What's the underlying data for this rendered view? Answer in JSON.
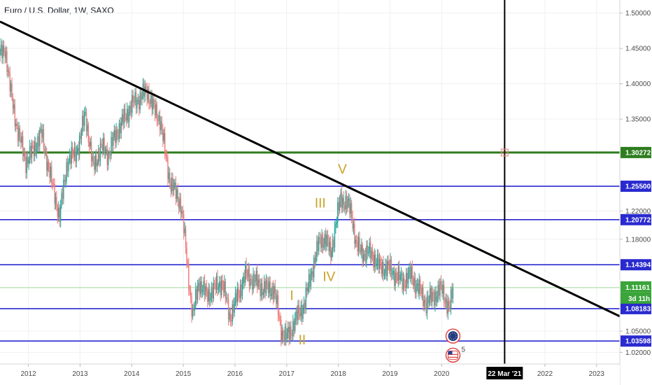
{
  "header": {
    "title": "Euro / U.S. Dollar, 1W, SAXO"
  },
  "colors": {
    "up": "#26a69a",
    "down": "#ef7a7a",
    "level": "#2a2ad0",
    "resistance_green": "#2e7d1e",
    "trendline": "#000000",
    "current_price": "#3aa53a",
    "grid": "#f0f0f0"
  },
  "chart_data": {
    "type": "candlestick",
    "symbol": "Euro / U.S. Dollar",
    "timeframe": "1W",
    "source": "SAXO",
    "x_range": [
      2011.45,
      2023.45
    ],
    "y_range": [
      1.0035,
      1.5185
    ],
    "x_ticks": [
      {
        "value": 2012,
        "label": "2012"
      },
      {
        "value": 2013,
        "label": "2013"
      },
      {
        "value": 2014,
        "label": "2014"
      },
      {
        "value": 2015,
        "label": "2015"
      },
      {
        "value": 2016,
        "label": "2016"
      },
      {
        "value": 2017,
        "label": "2017"
      },
      {
        "value": 2018,
        "label": "2018"
      },
      {
        "value": 2019,
        "label": "2019"
      },
      {
        "value": 2020,
        "label": "2020"
      },
      {
        "value": 2022,
        "label": "2022"
      },
      {
        "value": 2023,
        "label": "2023"
      }
    ],
    "y_ticks": [
      {
        "value": 1.5,
        "label": "1.50000"
      },
      {
        "value": 1.45,
        "label": "1.45000"
      },
      {
        "value": 1.4,
        "label": "1.40000"
      },
      {
        "value": 1.35,
        "label": "1.35000"
      },
      {
        "value": 1.22,
        "label": "1.22000"
      },
      {
        "value": 1.18,
        "label": "1.18000"
      },
      {
        "value": 1.05,
        "label": "1.05000"
      },
      {
        "value": 1.02,
        "label": "1.02000"
      }
    ],
    "price_path": [
      [
        2011.45,
        1.44
      ],
      [
        2011.55,
        1.45
      ],
      [
        2011.65,
        1.39
      ],
      [
        2011.8,
        1.33
      ],
      [
        2011.95,
        1.29
      ],
      [
        2012.05,
        1.3
      ],
      [
        2012.25,
        1.33
      ],
      [
        2012.45,
        1.26
      ],
      [
        2012.55,
        1.23
      ],
      [
        2012.6,
        1.21
      ],
      [
        2012.75,
        1.29
      ],
      [
        2012.9,
        1.3
      ],
      [
        2013.0,
        1.32
      ],
      [
        2013.1,
        1.36
      ],
      [
        2013.25,
        1.28
      ],
      [
        2013.4,
        1.31
      ],
      [
        2013.55,
        1.3
      ],
      [
        2013.7,
        1.33
      ],
      [
        2013.85,
        1.35
      ],
      [
        2014.0,
        1.37
      ],
      [
        2014.15,
        1.38
      ],
      [
        2014.3,
        1.39
      ],
      [
        2014.45,
        1.36
      ],
      [
        2014.55,
        1.35
      ],
      [
        2014.65,
        1.3
      ],
      [
        2014.75,
        1.26
      ],
      [
        2014.95,
        1.23
      ],
      [
        2015.0,
        1.2
      ],
      [
        2015.08,
        1.14
      ],
      [
        2015.18,
        1.07
      ],
      [
        2015.3,
        1.12
      ],
      [
        2015.45,
        1.1
      ],
      [
        2015.6,
        1.11
      ],
      [
        2015.75,
        1.12
      ],
      [
        2015.9,
        1.07
      ],
      [
        2016.0,
        1.09
      ],
      [
        2016.2,
        1.13
      ],
      [
        2016.4,
        1.12
      ],
      [
        2016.55,
        1.11
      ],
      [
        2016.75,
        1.11
      ],
      [
        2016.9,
        1.05
      ],
      [
        2017.0,
        1.04
      ],
      [
        2017.2,
        1.07
      ],
      [
        2017.35,
        1.09
      ],
      [
        2017.5,
        1.14
      ],
      [
        2017.65,
        1.18
      ],
      [
        2017.75,
        1.18
      ],
      [
        2017.85,
        1.16
      ],
      [
        2017.95,
        1.2
      ],
      [
        2018.05,
        1.24
      ],
      [
        2018.15,
        1.23
      ],
      [
        2018.25,
        1.22
      ],
      [
        2018.35,
        1.17
      ],
      [
        2018.5,
        1.16
      ],
      [
        2018.65,
        1.16
      ],
      [
        2018.8,
        1.14
      ],
      [
        2018.95,
        1.14
      ],
      [
        2019.1,
        1.13
      ],
      [
        2019.25,
        1.12
      ],
      [
        2019.4,
        1.13
      ],
      [
        2019.55,
        1.11
      ],
      [
        2019.7,
        1.09
      ],
      [
        2019.85,
        1.1
      ],
      [
        2020.0,
        1.11
      ],
      [
        2020.1,
        1.09
      ],
      [
        2020.15,
        1.08
      ],
      [
        2020.2,
        1.1
      ],
      [
        2020.22,
        1.1116
      ]
    ],
    "horizontal_levels": [
      {
        "value": 1.30272,
        "label": "1.30272",
        "style": "green"
      },
      {
        "value": 1.255,
        "label": "1.25500",
        "style": "blue"
      },
      {
        "value": 1.20772,
        "label": "1.20772",
        "style": "blue"
      },
      {
        "value": 1.14394,
        "label": "1.14394",
        "style": "blue"
      },
      {
        "value": 1.08183,
        "label": "1.08183",
        "style": "blue"
      },
      {
        "value": 1.03598,
        "label": "1.03598",
        "style": "blue"
      }
    ],
    "current_price": {
      "value": 1.11161,
      "label": "1.11161",
      "countdown": "3d 11h"
    },
    "trendline": {
      "start": [
        2011.45,
        1.488
      ],
      "end": [
        2023.45,
        1.071
      ]
    },
    "vertical_marker": {
      "x": 2021.22,
      "label": "22 Mar '21"
    },
    "intersection_marker": {
      "x": 2021.22,
      "y": 1.30272
    },
    "wave_labels": [
      {
        "text": "V",
        "x": 2018.08,
        "y": 1.273
      },
      {
        "text": "III",
        "x": 2017.65,
        "y": 1.225
      },
      {
        "text": "IV",
        "x": 2017.82,
        "y": 1.121
      },
      {
        "text": "I",
        "x": 2017.1,
        "y": 1.094
      },
      {
        "text": "II",
        "x": 2017.3,
        "y": 1.031
      }
    ],
    "event_badges": [
      {
        "kind": "eu-flag",
        "x": 2020.22,
        "y": 1.043
      },
      {
        "kind": "us-flag",
        "x": 2020.22,
        "y": 1.016,
        "count": "5"
      }
    ]
  }
}
